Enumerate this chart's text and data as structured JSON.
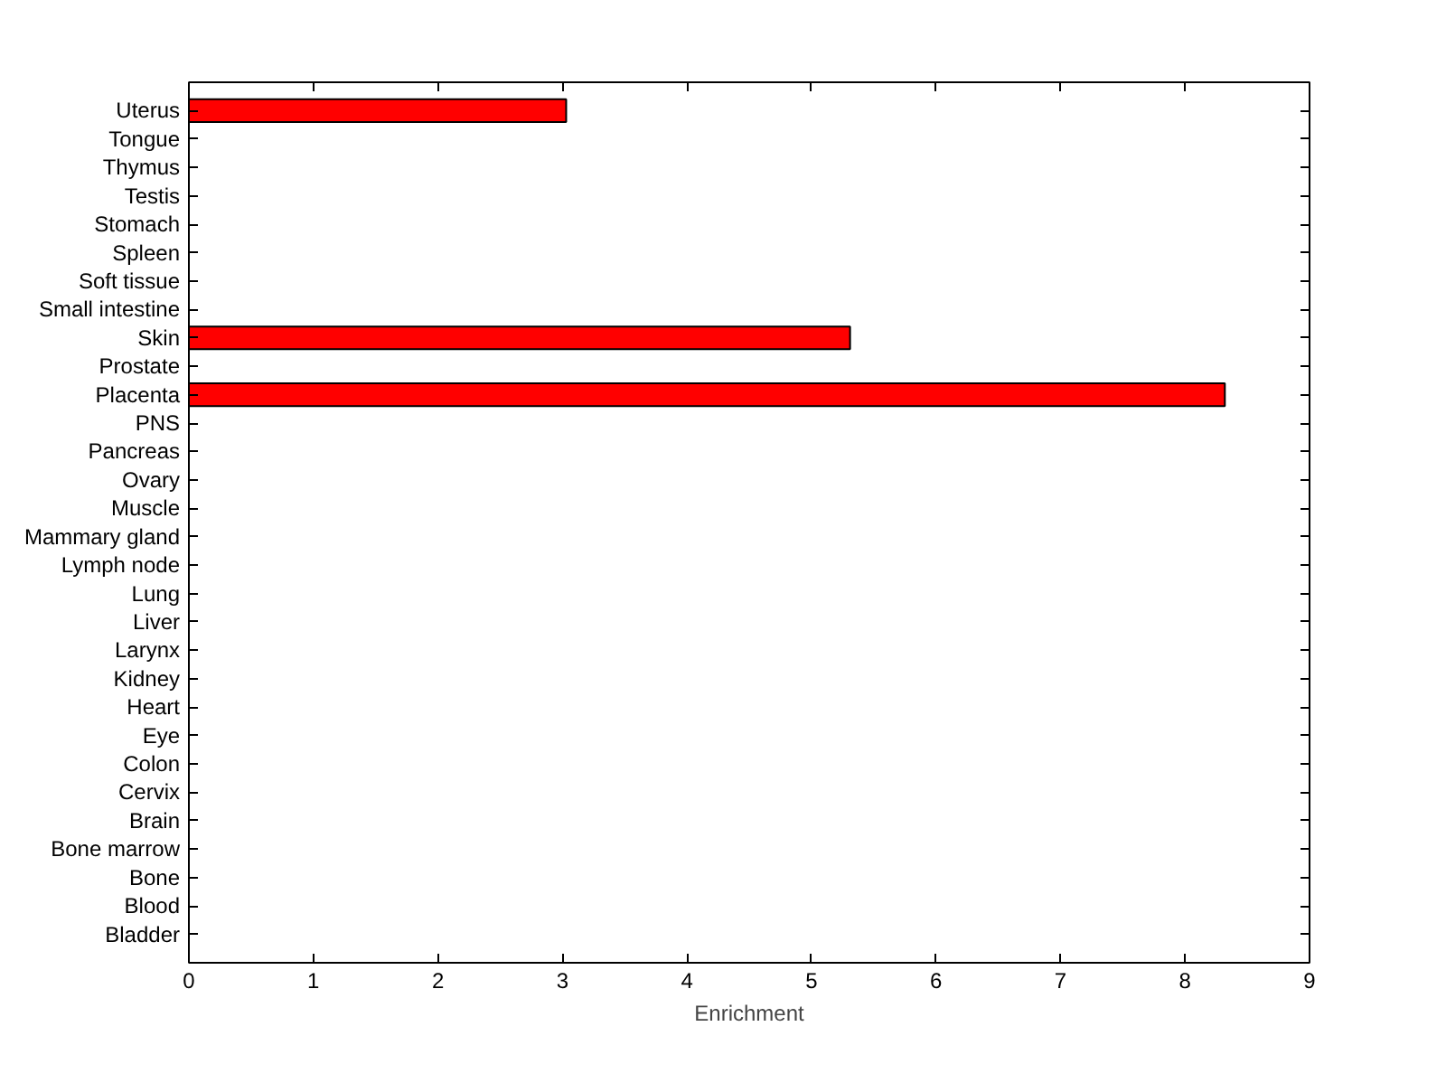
{
  "chart_data": {
    "type": "bar",
    "orientation": "horizontal",
    "categories": [
      "Uterus",
      "Tongue",
      "Thymus",
      "Testis",
      "Stomach",
      "Spleen",
      "Soft tissue",
      "Small intestine",
      "Skin",
      "Prostate",
      "Placenta",
      "PNS",
      "Pancreas",
      "Ovary",
      "Muscle",
      "Mammary gland",
      "Lymph node",
      "Lung",
      "Liver",
      "Larynx",
      "Kidney",
      "Heart",
      "Eye",
      "Colon",
      "Cervix",
      "Brain",
      "Bone marrow",
      "Bone",
      "Blood",
      "Bladder"
    ],
    "values": [
      3.03,
      0,
      0,
      0,
      0,
      0,
      0,
      0,
      5.31,
      0,
      8.32,
      0,
      0,
      0,
      0,
      0,
      0,
      0,
      0,
      0,
      0,
      0,
      0,
      0,
      0,
      0,
      0,
      0,
      0,
      0
    ],
    "color": "#ff0000",
    "xlabel": "Enrichment",
    "xlim": [
      0,
      9
    ],
    "xticks": [
      0,
      1,
      2,
      3,
      4,
      5,
      6,
      7,
      8,
      9
    ],
    "grid": false
  }
}
